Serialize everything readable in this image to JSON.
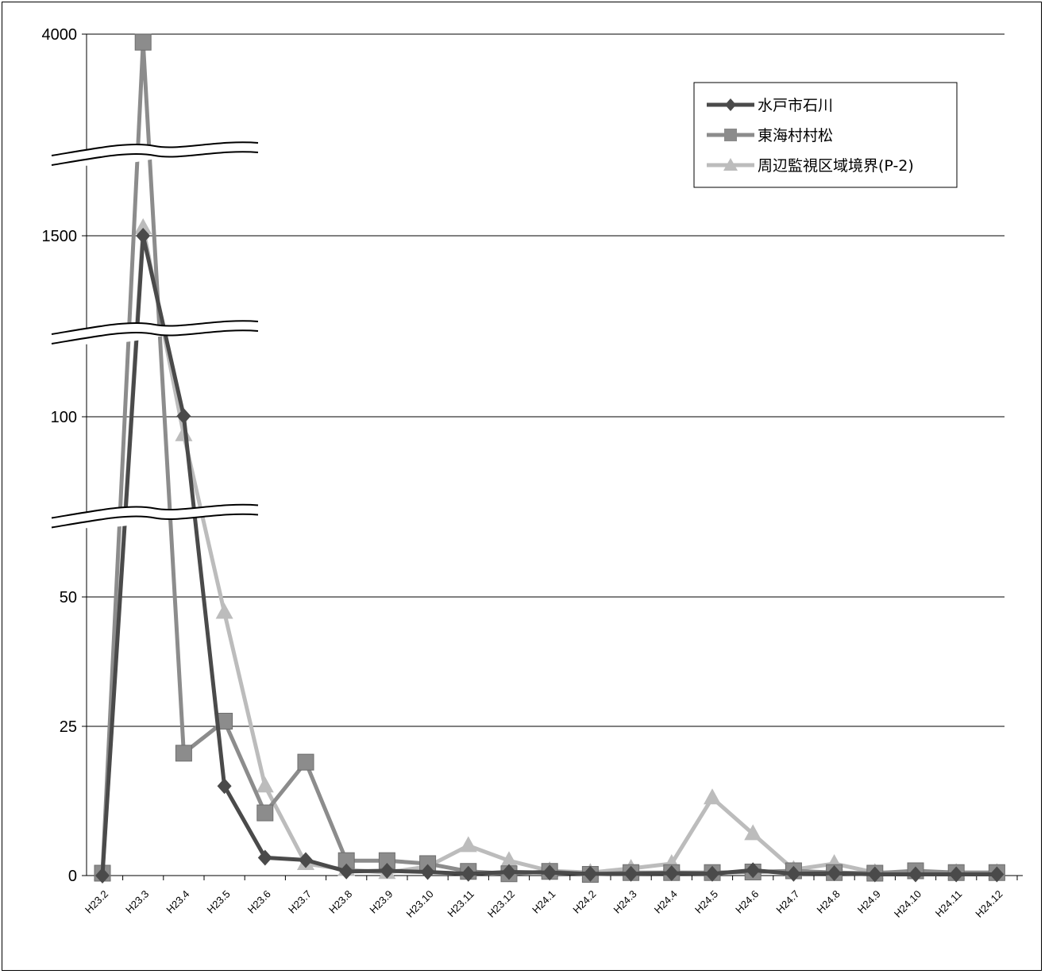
{
  "chart_data": {
    "type": "line",
    "title": "",
    "xlabel": "",
    "ylabel": "",
    "categories": [
      "H23.2",
      "H23.3",
      "H23.4",
      "H23.5",
      "H23.6",
      "H23.7",
      "H23.8",
      "H23.9",
      "H23.10",
      "H23.11",
      "H23.12",
      "H24.1",
      "H24.2",
      "H24.3",
      "H24.4",
      "H24.5",
      "H24.6",
      "H24.7",
      "H24.8",
      "H24.9",
      "H24.10",
      "H24.11",
      "H24.12"
    ],
    "y_axis": {
      "tick_labels": [
        "0",
        "25",
        "50",
        "100",
        "1500",
        "4000"
      ],
      "broken_segments": [
        {
          "from": 0,
          "to": 25
        },
        {
          "from": 25,
          "to": 50
        },
        {
          "from": 50,
          "to": 100
        },
        {
          "from": 100,
          "to": 1500
        },
        {
          "from": 1500,
          "to": 4000
        }
      ],
      "axis_breaks": [
        "between 50 and 100",
        "between 100 and 1500",
        "between 1500 and 4000"
      ]
    },
    "grid": true,
    "legend_position": "top-right",
    "series": [
      {
        "name": "水戸市石川",
        "color": "#4a4a4a",
        "marker": "diamond",
        "values": [
          0,
          1500,
          105,
          15,
          3,
          2.6,
          0.7,
          0.8,
          0.6,
          0.3,
          0.6,
          0.5,
          0.3,
          0.3,
          0.4,
          0.3,
          0.9,
          0.3,
          0.4,
          0.2,
          0.2,
          0.2,
          0.2
        ]
      },
      {
        "name": "東海村村松",
        "color": "#8c8c8c",
        "marker": "square",
        "values": [
          0.4,
          3900,
          20.5,
          26,
          10.5,
          19,
          2.5,
          2.5,
          2,
          0.7,
          0.3,
          0.7,
          0.2,
          0.5,
          0.5,
          0.5,
          0.6,
          0.8,
          0.5,
          0.4,
          0.8,
          0.5,
          0.5
        ]
      },
      {
        "name": "周辺監視区域境界(P-2)",
        "color": "#bcbcbc",
        "marker": "triangle",
        "values": [
          0.3,
          1600,
          95,
          47,
          15,
          2,
          1,
          0.5,
          1.5,
          5,
          2.5,
          0.8,
          0.5,
          1.2,
          2,
          13,
          7,
          1,
          2,
          0.5,
          0.5,
          0.5,
          0.5
        ]
      }
    ]
  }
}
